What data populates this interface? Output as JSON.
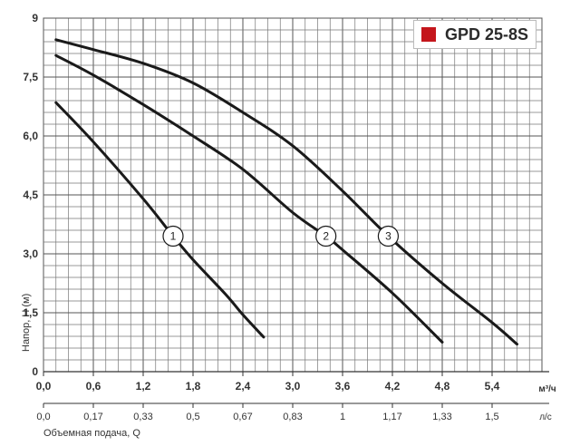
{
  "chart_data": {
    "type": "line",
    "title": "GPD 25-8S",
    "title_color": "#c4161c",
    "ylabel": "Напор, H (м)",
    "xlabel": "Объемная подача, Q",
    "x_unit": "м³/ч",
    "x2_unit": "л/с",
    "xlim": [
      0,
      6.0
    ],
    "ylim": [
      0,
      9
    ],
    "grid": true,
    "x_ticks": [
      "0,0",
      "0,6",
      "1,2",
      "1,8",
      "2,4",
      "3,0",
      "3,6",
      "4,2",
      "4,8",
      "5,4"
    ],
    "x_tick_values": [
      0,
      0.6,
      1.2,
      1.8,
      2.4,
      3.0,
      3.6,
      4.2,
      4.8,
      5.4
    ],
    "x2_ticks": [
      "0,0",
      "0,17",
      "0,33",
      "0,5",
      "0,67",
      "0,83",
      "1",
      "1,17",
      "1,33",
      "1,5"
    ],
    "y_ticks": [
      "0",
      "1,5",
      "3,0",
      "4,5",
      "6,0",
      "7,5",
      "9"
    ],
    "y_tick_values": [
      0,
      1.5,
      3.0,
      4.5,
      6.0,
      7.5,
      9
    ],
    "series": [
      {
        "name": "1",
        "label_at": [
          1.56,
          3.45
        ],
        "points": [
          [
            0.15,
            6.85
          ],
          [
            0.6,
            5.85
          ],
          [
            1.2,
            4.4
          ],
          [
            1.56,
            3.45
          ],
          [
            1.8,
            2.85
          ],
          [
            2.2,
            1.95
          ],
          [
            2.4,
            1.45
          ],
          [
            2.65,
            0.88
          ]
        ]
      },
      {
        "name": "2",
        "label_at": [
          3.4,
          3.45
        ],
        "points": [
          [
            0.15,
            8.05
          ],
          [
            0.6,
            7.55
          ],
          [
            1.2,
            6.8
          ],
          [
            1.8,
            6.0
          ],
          [
            2.4,
            5.15
          ],
          [
            3.0,
            4.05
          ],
          [
            3.4,
            3.45
          ],
          [
            3.6,
            3.1
          ],
          [
            4.2,
            2.0
          ],
          [
            4.8,
            0.75
          ]
        ]
      },
      {
        "name": "3",
        "label_at": [
          4.15,
          3.45
        ],
        "points": [
          [
            0.15,
            8.45
          ],
          [
            0.6,
            8.2
          ],
          [
            1.2,
            7.85
          ],
          [
            1.8,
            7.35
          ],
          [
            2.4,
            6.6
          ],
          [
            3.0,
            5.75
          ],
          [
            3.6,
            4.6
          ],
          [
            4.15,
            3.45
          ],
          [
            4.8,
            2.25
          ],
          [
            5.4,
            1.25
          ],
          [
            5.7,
            0.7
          ]
        ]
      }
    ]
  }
}
